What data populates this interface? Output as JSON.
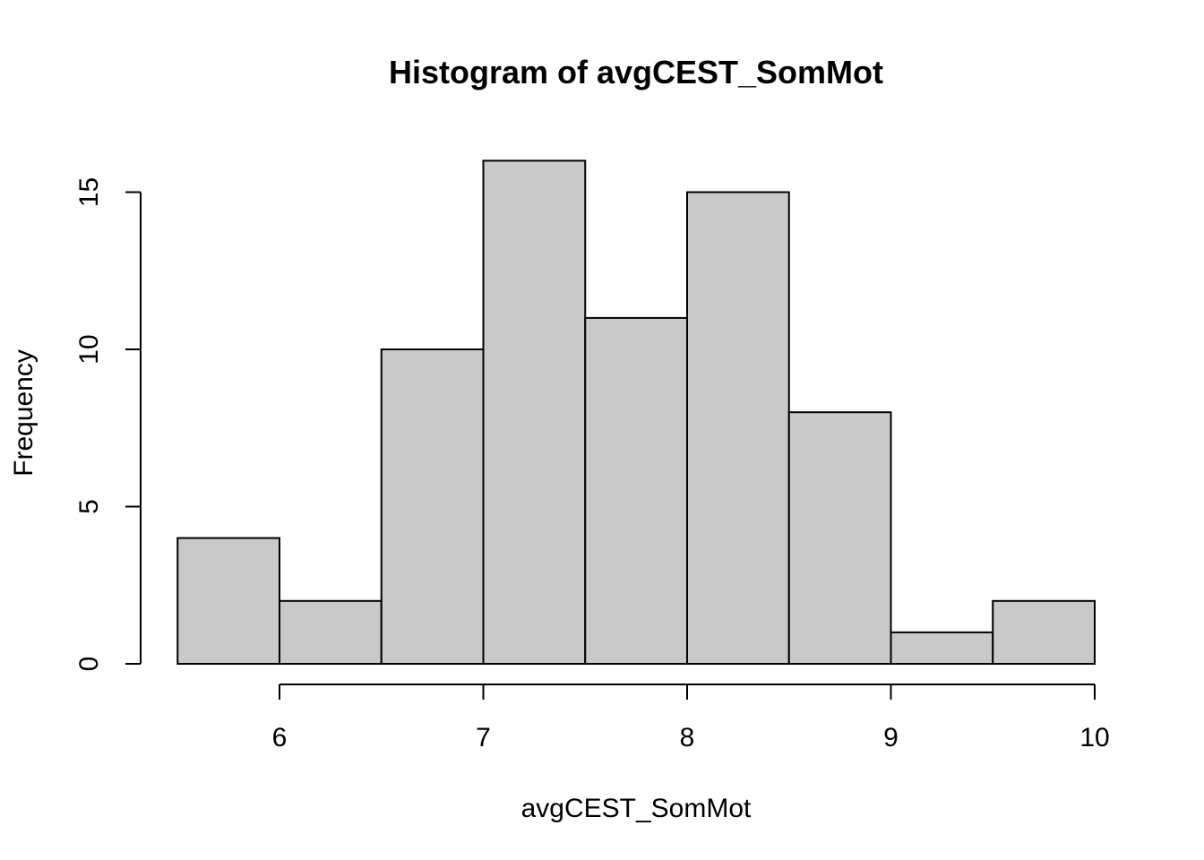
{
  "chart_data": {
    "type": "bar",
    "subtype": "histogram",
    "title": "Histogram of avgCEST_SomMot",
    "xlabel": "avgCEST_SomMot",
    "ylabel": "Frequency",
    "bins": [
      {
        "start": 5.5,
        "end": 6.0,
        "count": 4
      },
      {
        "start": 6.0,
        "end": 6.5,
        "count": 2
      },
      {
        "start": 6.5,
        "end": 7.0,
        "count": 10
      },
      {
        "start": 7.0,
        "end": 7.5,
        "count": 16
      },
      {
        "start": 7.5,
        "end": 8.0,
        "count": 11
      },
      {
        "start": 8.0,
        "end": 8.5,
        "count": 15
      },
      {
        "start": 8.5,
        "end": 9.0,
        "count": 8
      },
      {
        "start": 9.0,
        "end": 9.5,
        "count": 1
      },
      {
        "start": 9.5,
        "end": 10.0,
        "count": 2
      }
    ],
    "x_ticks": [
      6,
      7,
      8,
      9,
      10
    ],
    "x_tick_labels": [
      "6",
      "7",
      "8",
      "9",
      "10"
    ],
    "y_ticks": [
      0,
      5,
      10,
      15
    ],
    "y_tick_labels": [
      "0",
      "5",
      "10",
      "15"
    ],
    "xlim": [
      5.5,
      10.0
    ],
    "ylim": [
      0,
      16
    ],
    "grid": false,
    "legend": "none",
    "colors": {
      "bar_fill": "#c9c9c9",
      "bar_stroke": "#000000",
      "axis": "#000000"
    }
  }
}
